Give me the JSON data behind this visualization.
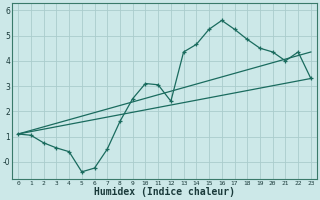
{
  "xlabel": "Humidex (Indice chaleur)",
  "background_color": "#cce8e8",
  "grid_color": "#aacccc",
  "line_color": "#1a6b5e",
  "xlim": [
    -0.5,
    23.5
  ],
  "ylim": [
    -0.7,
    6.3
  ],
  "xticks": [
    0,
    1,
    2,
    3,
    4,
    5,
    6,
    7,
    8,
    9,
    10,
    11,
    12,
    13,
    14,
    15,
    16,
    17,
    18,
    19,
    20,
    21,
    22,
    23
  ],
  "yticks": [
    0,
    1,
    2,
    3,
    4,
    5,
    6
  ],
  "ytick_labels": [
    "-0",
    "1",
    "2",
    "3",
    "4",
    "5",
    "6"
  ],
  "line1_x": [
    0,
    1,
    2,
    3,
    4,
    5,
    6,
    7,
    8,
    9,
    10,
    11,
    12,
    13,
    14,
    15,
    16,
    17,
    18,
    19,
    20,
    21,
    22,
    23
  ],
  "line1_y": [
    1.1,
    1.05,
    0.75,
    0.55,
    0.4,
    -0.4,
    -0.25,
    0.5,
    1.6,
    2.5,
    3.1,
    3.05,
    2.4,
    4.35,
    4.65,
    5.25,
    5.6,
    5.25,
    4.85,
    4.5,
    4.35,
    4.0,
    4.35,
    3.3
  ],
  "line2_x": [
    0,
    23
  ],
  "line2_y": [
    1.1,
    3.3
  ],
  "line3_x": [
    0,
    23
  ],
  "line3_y": [
    1.1,
    4.35
  ],
  "spine_color": "#3a7a6a",
  "tick_color": "#1a3a3a",
  "label_fontsize": 6,
  "xlabel_fontsize": 7
}
